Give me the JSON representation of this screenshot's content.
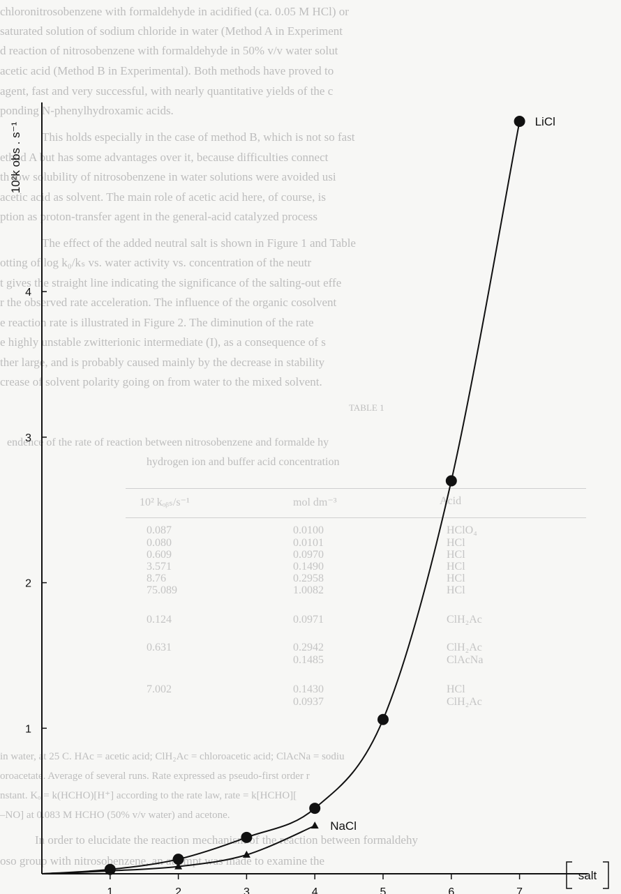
{
  "background_text": {
    "paragraph_lines": [
      "chloronitrosobenzene with formaldehyde in acidified (ca. 0.05 M HCl) or",
      "saturated solution of sodium chloride in water (Method A in Experiment",
      "d reaction of nitrosobenzene with formaldehyde in 50% v/v water solut",
      "acetic acid (Method B in Experimental). Both methods have proved to",
      "agent, fast and very successful, with nearly quantitative yields of the c",
      "ponding N-phenylhydroxamic acids.",
      "This holds especially in the case of method B, which is not so fast",
      "ethod A but has some advantages over it, because difficulties connect",
      "th low solubility of nitrosobenzene in water solutions were avoided usi",
      "acetic acid as solvent. The main role of acetic acid here, of course, is",
      "ption as proton-transfer agent in the general-acid catalyzed process",
      "The effect of the added neutral salt is shown in Figure 1 and Table",
      "otting of log k₀/kₛ vs. water activity vs. concentration of the neutr",
      "t gives the straight line indicating the significance of the salting-out effe",
      "r the observed rate acceleration. The influence of the organic cosolvent",
      "e reaction rate is illustrated in Figure 2. The diminution of the rate",
      "e highly unstable zwitterionic intermediate (I), as a consequence of s",
      "ther large, and is probably caused mainly by the decrease in stability",
      "crease of solvent polarity going on from water to the mixed solvent."
    ],
    "table_caption": "TABLE 1",
    "table_title_lines": [
      "endence of the rate of reaction between nitrosobenzene and formalde hy",
      "hydrogen ion and buffer acid concentration"
    ],
    "table_header": [
      "Acid",
      "mol dm⁻³",
      "10² kₒᵦₛ/s⁻¹"
    ],
    "table_rows": [
      [
        "HClO₄",
        "0.0100",
        "0.087"
      ],
      [
        "HCl",
        "0.0101",
        "0.080"
      ],
      [
        "HCl",
        "0.0970",
        "0.609"
      ],
      [
        "HCl",
        "0.1490",
        "3.571"
      ],
      [
        "HCl",
        "0.2958",
        "8.76"
      ],
      [
        "HCl",
        "1.0082",
        "75.089"
      ],
      [
        "ClH₂Ac",
        "0.0971",
        "0.124"
      ],
      [
        "ClH₂Ac",
        "0.2942",
        "0.631"
      ],
      [
        "ClAcNa",
        "0.1485",
        ""
      ],
      [
        "HCl",
        "0.1430",
        "7.002"
      ],
      [
        "ClH₂Ac",
        "0.0937",
        ""
      ]
    ],
    "footnote_lines": [
      "in water, at 25 C. HAc = acetic acid; ClH₂Ac = chloroacetic acid; ClAcNa = sodiu",
      "oroacetate. Average of several runs. Rate expressed as pseudo-first order r",
      "nstant. Kₒ = k(HCHO)[H⁺] according to the rate law, rate = k[HCHO][",
      "–NO] at 0.083 M HCHO (50% v/v water) and acetone.",
      "In order to elucidate the reaction mechanism of the reaction between formaldehy",
      "oso group with nitrosobenzene, an attempt was made to examine the"
    ]
  },
  "chart_data": {
    "type": "line",
    "ylabel": "10²k obs . s⁻¹",
    "xlabel": "salt",
    "xlim": [
      0,
      8
    ],
    "ylim": [
      0,
      5.3
    ],
    "x_ticks": [
      1,
      2,
      3,
      4,
      5,
      6,
      7
    ],
    "y_ticks": [
      1,
      2,
      3,
      4
    ],
    "grid": false,
    "series": [
      {
        "name": "LiCl",
        "marker": "circle",
        "x": [
          0,
          1,
          2,
          3,
          4,
          5,
          6,
          7
        ],
        "y": [
          0,
          0.03,
          0.1,
          0.25,
          0.45,
          1.06,
          2.7,
          5.17
        ]
      },
      {
        "name": "NaCl",
        "marker": "triangle",
        "x": [
          0,
          1,
          2,
          3,
          4
        ],
        "y": [
          0,
          0.02,
          0.05,
          0.13,
          0.33
        ]
      }
    ]
  }
}
